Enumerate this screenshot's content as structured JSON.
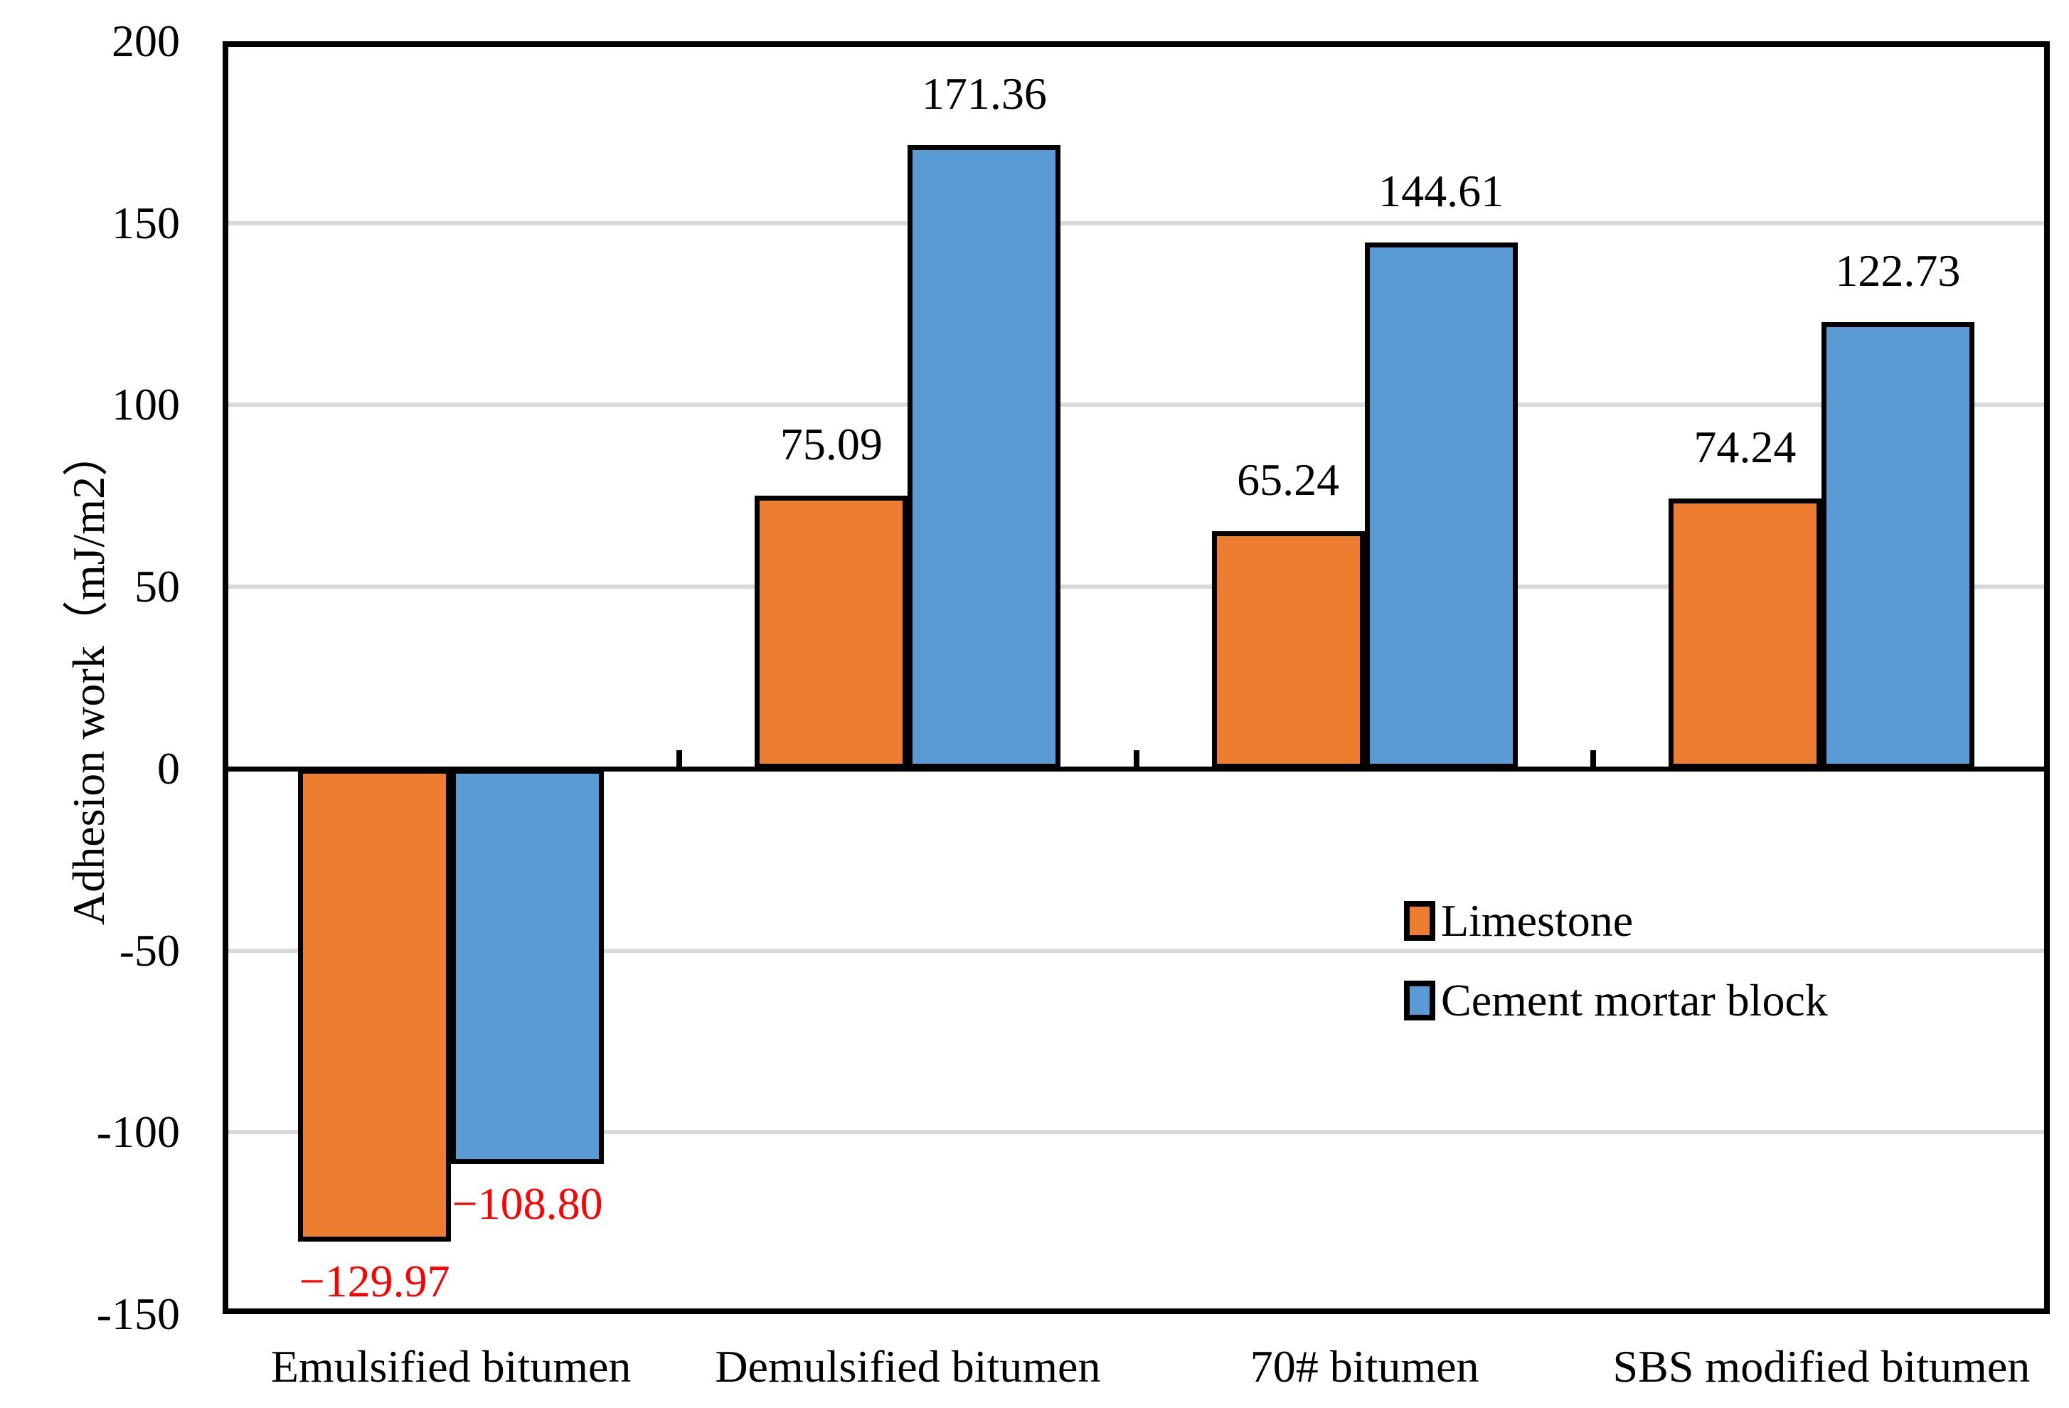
{
  "chart_data": {
    "type": "bar",
    "title": "",
    "ylabel": "Adhesion work（mJ/m2）",
    "xlabel": "",
    "ylim": [
      -150,
      200
    ],
    "yticks": [
      200,
      150,
      100,
      50,
      0,
      -50,
      -100,
      -150
    ],
    "ytick_labels": [
      "200",
      "150",
      "100",
      "50",
      "0",
      "-50",
      "-100",
      "-150"
    ],
    "grid": true,
    "grid_color": "#D9D9D9",
    "axis_color": "#000000",
    "categories": [
      "Emulsified bitumen",
      "Demulsified bitumen",
      "70# bitumen",
      "SBS modified bitumen"
    ],
    "series": [
      {
        "name": "Limestone",
        "color": "#ED7D31",
        "values": [
          -129.97,
          75.09,
          65.24,
          74.24
        ],
        "labels": [
          "−129.97",
          "75.09",
          "65.24",
          "74.24"
        ]
      },
      {
        "name": "Cement mortar block",
        "color": "#5B9BD5",
        "values": [
          -108.8,
          171.36,
          144.61,
          122.73
        ],
        "labels": [
          "−108.80",
          "171.36",
          "144.61",
          "122.73"
        ]
      }
    ],
    "positive_label_color": "#000000",
    "negative_label_color": "#FF0000",
    "legend_position": "center-right"
  }
}
